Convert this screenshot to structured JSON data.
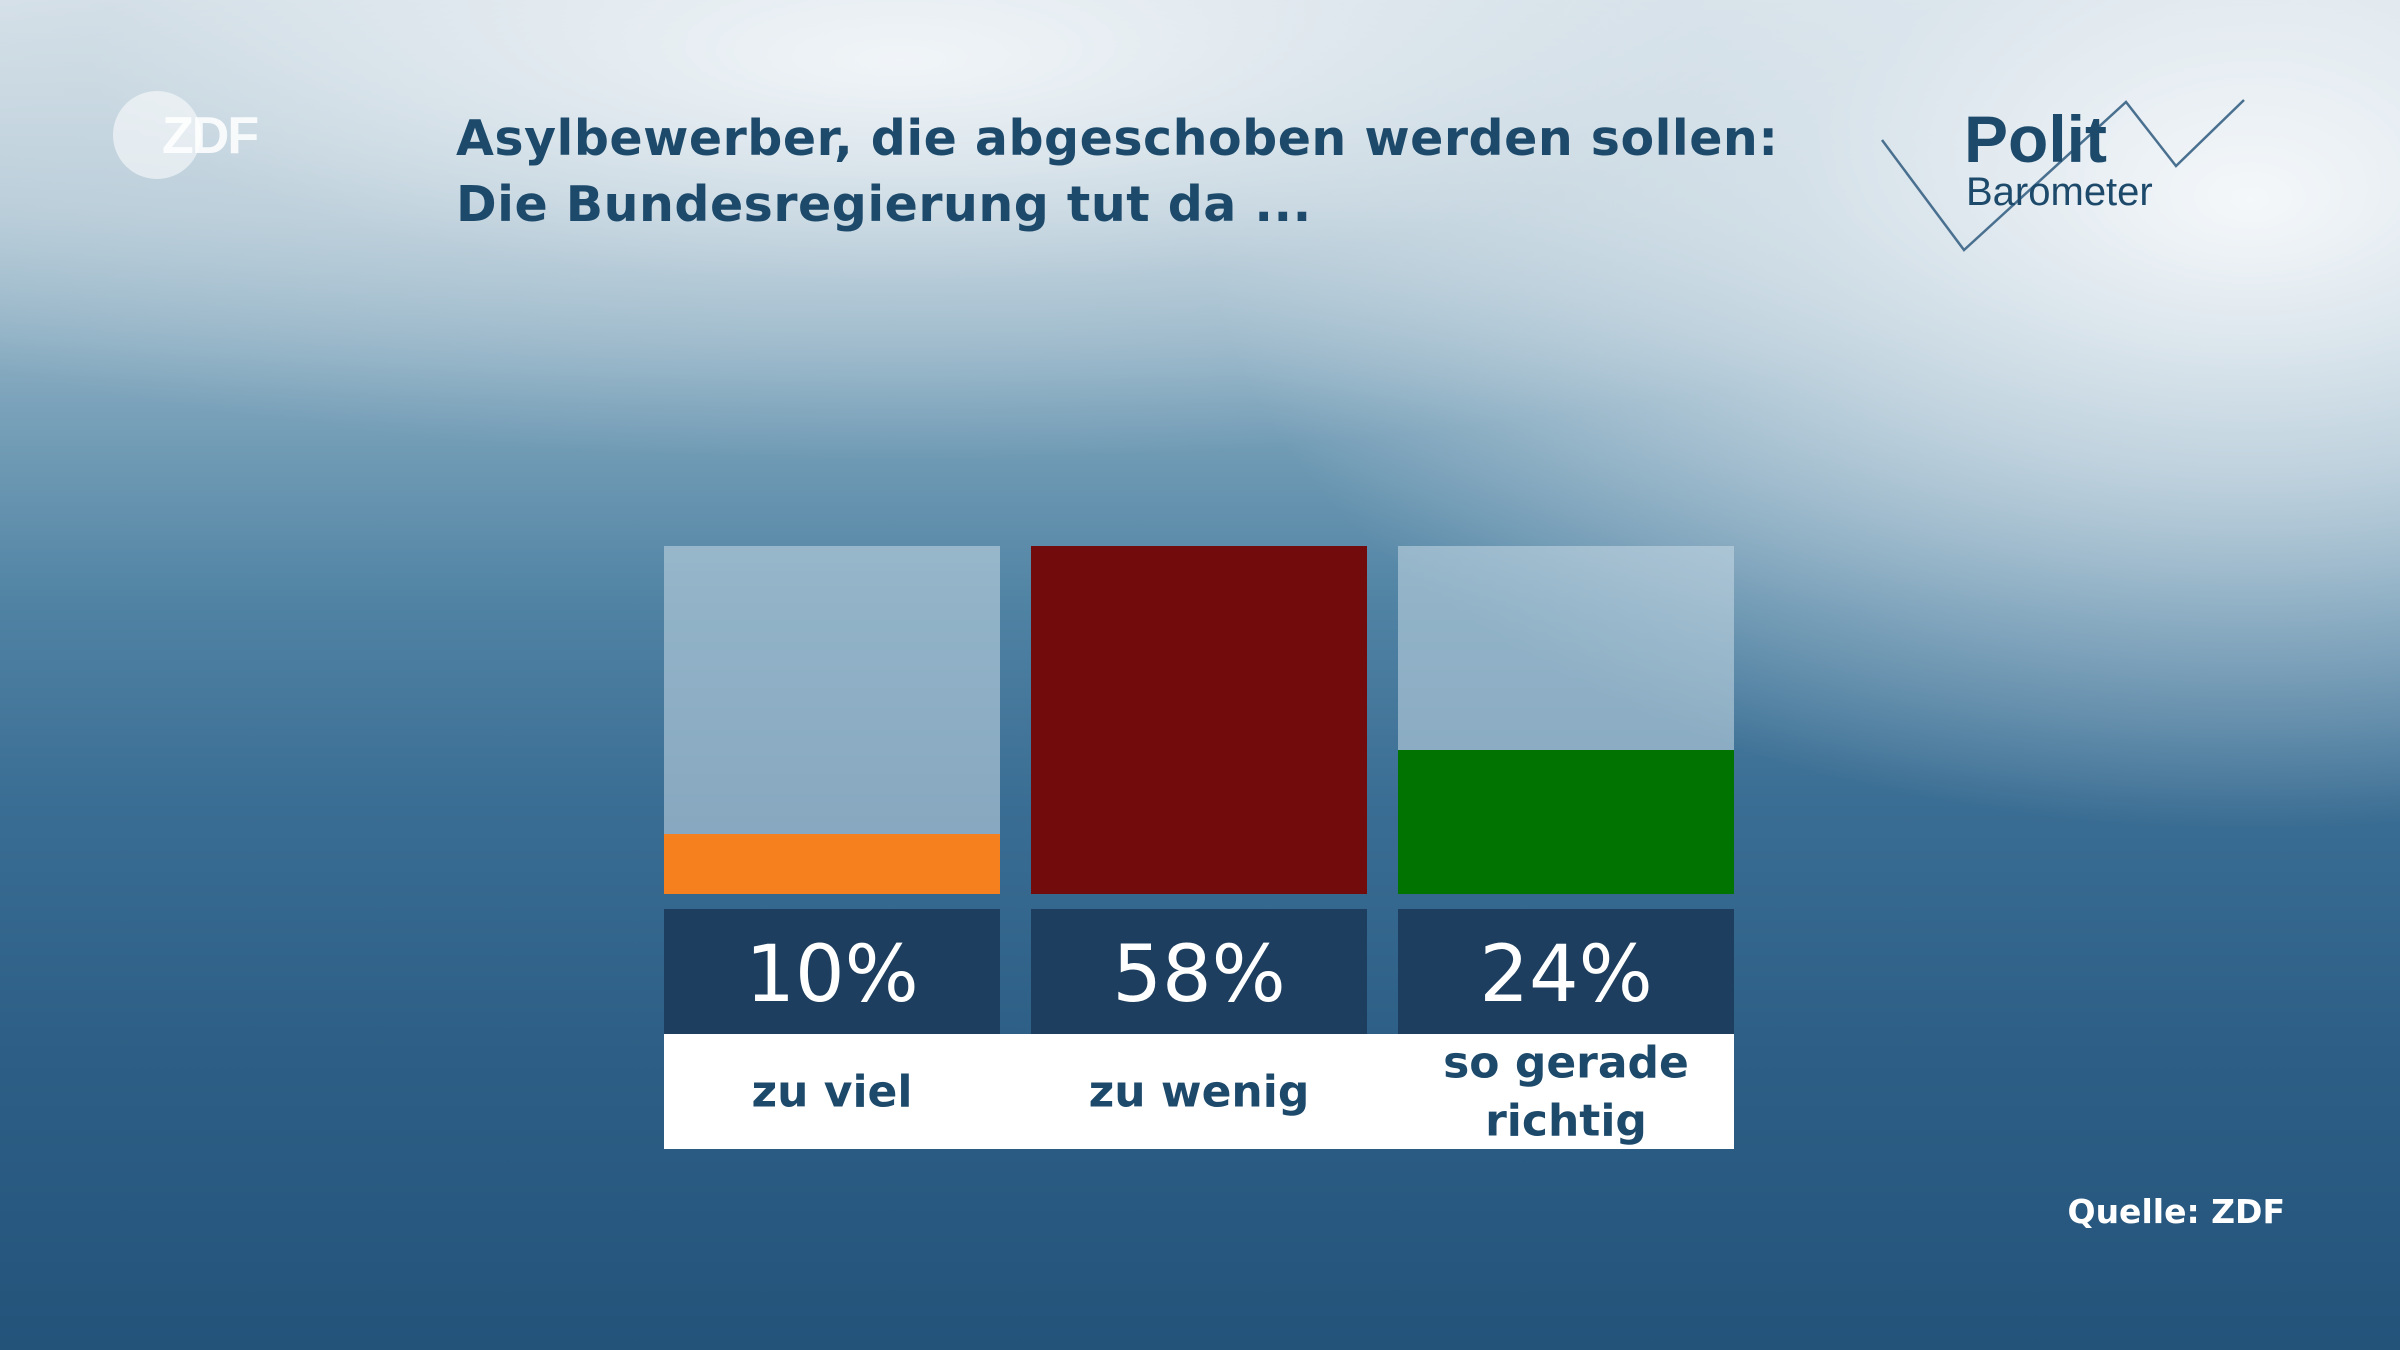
{
  "header": {
    "title_line1": "Asylbewerber, die abgeschoben werden sollen:",
    "title_line2": "Die Bundesregierung tut da ...",
    "channel_logo": "ZDF",
    "program_logo_line1": "Polit",
    "program_logo_line2": "Barometer"
  },
  "footer": {
    "source": "Quelle: ZDF"
  },
  "colors": {
    "zu_viel": "#f7801e",
    "zu_wenig": "#720b0c",
    "so_gerade_richtig": "#007300",
    "label_box": "#1d3e5e",
    "title": "#1d4a6b"
  },
  "chart_data": {
    "type": "bar",
    "categories": [
      "zu viel",
      "zu wenig",
      "so gerade richtig"
    ],
    "values": [
      10,
      58,
      24
    ],
    "value_labels": [
      "10%",
      "58%",
      "24%"
    ],
    "ylim": [
      0,
      58
    ],
    "title": "Asylbewerber, die abgeschoben werden sollen: Die Bundesregierung tut da ...",
    "xlabel": "",
    "ylabel": "",
    "grid": false,
    "legend": "none"
  }
}
